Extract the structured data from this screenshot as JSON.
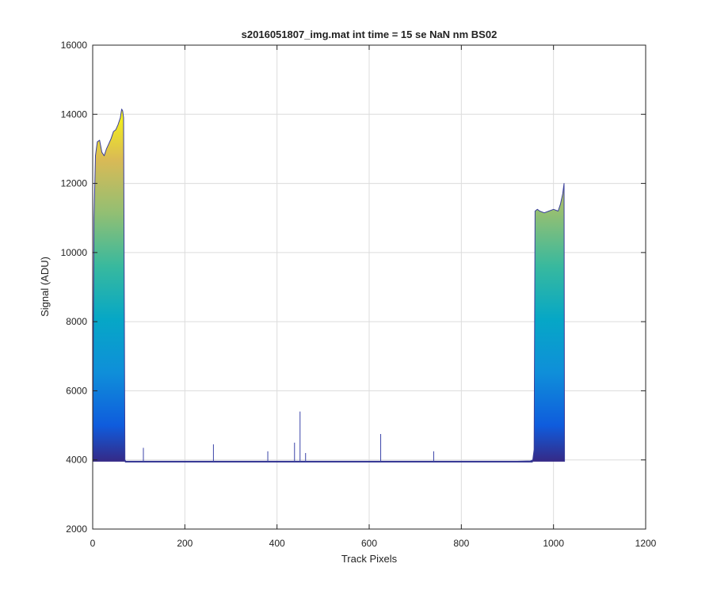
{
  "chart_data": {
    "type": "area",
    "title": "s2016051807_img.mat int time = 15 se  NaN nm BS02",
    "xlabel": "Track Pixels",
    "ylabel": "Signal (ADU)",
    "xlim": [
      0,
      1200
    ],
    "ylim": [
      2000,
      16000
    ],
    "xticks": [
      0,
      200,
      400,
      600,
      800,
      1000,
      1200
    ],
    "yticks": [
      2000,
      4000,
      6000,
      8000,
      10000,
      12000,
      14000,
      16000
    ],
    "xtick_labels": [
      "0",
      "200",
      "400",
      "600",
      "800",
      "1000",
      "1200"
    ],
    "ytick_labels": [
      "2000",
      "4000",
      "6000",
      "8000",
      "10000",
      "12000",
      "14000",
      "16000"
    ],
    "grid": true,
    "colormap": "parula",
    "baseline": 3950,
    "envelope": {
      "x": [
        0,
        1,
        3,
        6,
        10,
        15,
        20,
        25,
        30,
        35,
        40,
        45,
        50,
        55,
        60,
        63,
        65,
        67,
        70,
        72,
        75,
        100,
        200,
        300,
        400,
        500,
        600,
        700,
        800,
        900,
        950,
        955,
        958,
        960,
        965,
        970,
        980,
        990,
        1000,
        1010,
        1015,
        1020,
        1023,
        1024
      ],
      "y": [
        3950,
        6500,
        11000,
        12800,
        13200,
        13250,
        12900,
        12800,
        13000,
        13150,
        13300,
        13500,
        13550,
        13700,
        13900,
        14150,
        14100,
        13900,
        4000,
        3960,
        3950,
        3950,
        3950,
        3950,
        3950,
        3950,
        3950,
        3950,
        3950,
        3950,
        3970,
        4000,
        4300,
        11200,
        11250,
        11200,
        11150,
        11200,
        11250,
        11200,
        11400,
        11700,
        12000,
        3950
      ]
    },
    "spikes": [
      {
        "x": 110,
        "y": 4350
      },
      {
        "x": 262,
        "y": 4450
      },
      {
        "x": 380,
        "y": 4250
      },
      {
        "x": 438,
        "y": 4500
      },
      {
        "x": 450,
        "y": 5400
      },
      {
        "x": 462,
        "y": 4200
      },
      {
        "x": 625,
        "y": 4750
      },
      {
        "x": 740,
        "y": 4250
      }
    ]
  }
}
